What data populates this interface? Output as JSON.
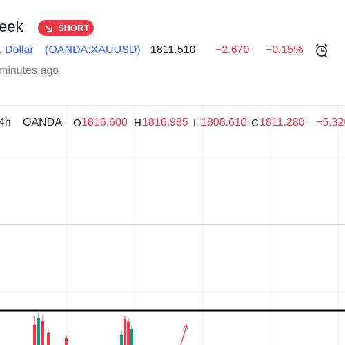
{
  "header": {
    "title": "eek",
    "badge": "SHORT",
    "symbol_name": ". Dollar",
    "symbol": "(OANDA:XAUUSD)",
    "price": "1811.510",
    "change": "−2.670",
    "change_percent": "−0.15%",
    "time": "minutes ago"
  },
  "legend": {
    "interval": "4h",
    "source": "OANDA",
    "open_label": "O",
    "open": "1816.600",
    "high_label": "H",
    "high": "1816.985",
    "low_label": "L",
    "low": "1808.610",
    "close_label": "C",
    "close": "1811.280",
    "change": "−5.320"
  }
}
